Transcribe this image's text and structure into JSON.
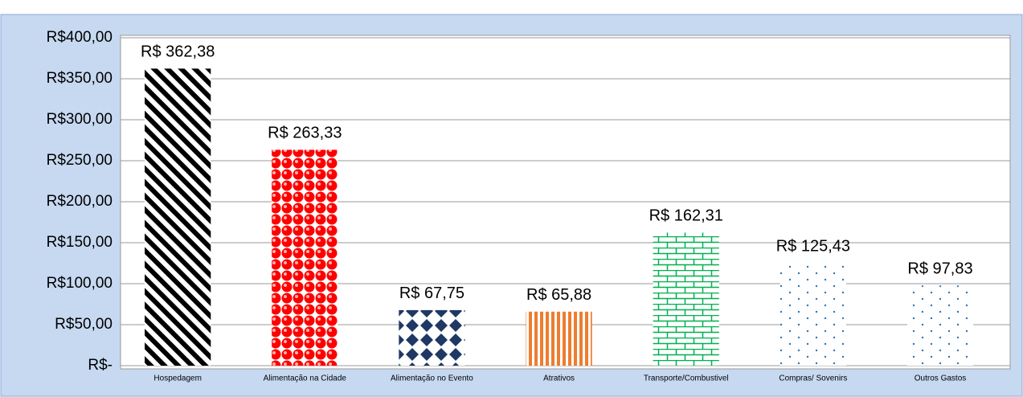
{
  "chart_data": {
    "type": "bar",
    "categories": [
      "Hospedagem",
      "Alimentação na Cidade",
      "Alimentação no Evento",
      "Atrativos",
      "Transporte/Combustivel",
      "Compras/ Sovenirs",
      "Outros Gastos"
    ],
    "values": [
      362.38,
      263.33,
      67.75,
      65.88,
      162.31,
      125.43,
      97.83
    ],
    "value_labels": [
      "R$ 362,38",
      "R$ 263,33",
      "R$ 67,75",
      "R$ 65,88",
      "R$ 162,31",
      "R$ 125,43",
      "R$ 97,83"
    ],
    "colors": [
      "#000000",
      "#ff0000",
      "#1f3864",
      "#ed7d31",
      "#00b050",
      "#2e75b6",
      "#2e75b6"
    ],
    "patterns": [
      "diagonal-stripes",
      "spheres",
      "diamonds",
      "vertical-stripes",
      "bricks",
      "sparse-dots",
      "sparse-dots"
    ],
    "ylim": [
      0,
      400
    ],
    "yticks": [
      {
        "value": 0,
        "label": "R$-"
      },
      {
        "value": 50,
        "label": "R$50,00"
      },
      {
        "value": 100,
        "label": "R$100,00"
      },
      {
        "value": 150,
        "label": "R$150,00"
      },
      {
        "value": 200,
        "label": "R$200,00"
      },
      {
        "value": 250,
        "label": "R$250,00"
      },
      {
        "value": 300,
        "label": "R$300,00"
      },
      {
        "value": 350,
        "label": "R$350,00"
      },
      {
        "value": 400,
        "label": "R$400,00"
      }
    ],
    "grid": true
  }
}
